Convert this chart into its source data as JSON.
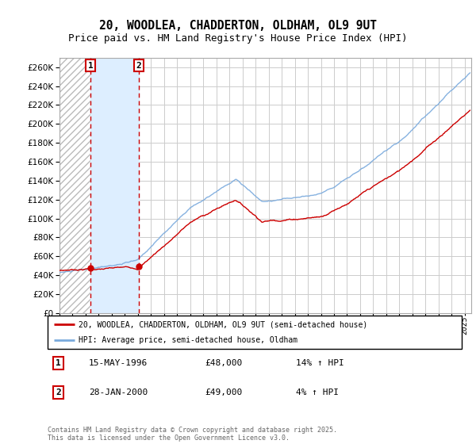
{
  "title": "20, WOODLEA, CHADDERTON, OLDHAM, OL9 9UT",
  "subtitle": "Price paid vs. HM Land Registry's House Price Index (HPI)",
  "ylim": [
    0,
    270000
  ],
  "yticks": [
    0,
    20000,
    40000,
    60000,
    80000,
    100000,
    120000,
    140000,
    160000,
    180000,
    200000,
    220000,
    240000,
    260000
  ],
  "xlim_start": 1994.0,
  "xlim_end": 2025.5,
  "sale1_date": 1996.37,
  "sale1_price": 48000,
  "sale1_note": "15-MAY-1996",
  "sale1_pct": "14% ↑ HPI",
  "sale2_date": 2000.08,
  "sale2_price": 49000,
  "sale2_note": "28-JAN-2000",
  "sale2_pct": "4% ↑ HPI",
  "legend_line1": "20, WOODLEA, CHADDERTON, OLDHAM, OL9 9UT (semi-detached house)",
  "legend_line2": "HPI: Average price, semi-detached house, Oldham",
  "footer": "Contains HM Land Registry data © Crown copyright and database right 2025.\nThis data is licensed under the Open Government Licence v3.0.",
  "sale_region_color": "#ddeeff",
  "grid_color": "#cccccc",
  "red_line_color": "#cc0000",
  "blue_line_color": "#7aaadd",
  "title_fontsize": 11,
  "subtitle_fontsize": 10,
  "hatch_color": "#cccccc"
}
